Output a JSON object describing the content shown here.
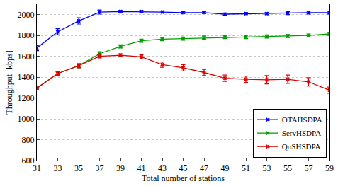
{
  "chart_data": {
    "type": "line",
    "x_label": "Total number of stations",
    "y_label": "Throughput [kbps]",
    "x": [
      31,
      33,
      35,
      37,
      39,
      41,
      43,
      45,
      47,
      49,
      51,
      53,
      55,
      57,
      59
    ],
    "series": [
      {
        "name": "OTAHSDPA",
        "color": "#0000ff",
        "marker": "x",
        "values": [
          1680,
          1835,
          1940,
          2025,
          2030,
          2030,
          2025,
          2020,
          2020,
          2005,
          2010,
          2010,
          2015,
          2020,
          2020
        ],
        "errors": [
          25,
          30,
          30,
          20,
          10,
          10,
          10,
          10,
          10,
          10,
          10,
          10,
          15,
          15,
          15
        ]
      },
      {
        "name": "ServHSDPA",
        "color": "#00a000",
        "marker": "x",
        "values": [
          1295,
          1435,
          1510,
          1625,
          1695,
          1750,
          1765,
          1770,
          1780,
          1785,
          1785,
          1790,
          1795,
          1800,
          1815
        ],
        "errors": [
          10,
          20,
          20,
          20,
          15,
          15,
          15,
          15,
          15,
          15,
          15,
          15,
          15,
          15,
          15
        ]
      },
      {
        "name": "QoSHSDPA",
        "color": "#e00000",
        "marker": "x",
        "values": [
          1295,
          1435,
          1510,
          1600,
          1610,
          1595,
          1520,
          1490,
          1445,
          1390,
          1380,
          1375,
          1380,
          1355,
          1275
        ],
        "errors": [
          10,
          20,
          20,
          15,
          15,
          20,
          25,
          30,
          30,
          30,
          30,
          40,
          40,
          40,
          30
        ]
      }
    ],
    "xlim": [
      31,
      59
    ],
    "xticks": [
      31,
      33,
      35,
      37,
      39,
      41,
      43,
      45,
      47,
      49,
      51,
      53,
      55,
      57,
      59
    ],
    "ylim": [
      600,
      2100
    ],
    "yticks": [
      600,
      800,
      1000,
      1200,
      1400,
      1600,
      1800,
      2000
    ],
    "grid": "y",
    "legend": "bottom right"
  }
}
